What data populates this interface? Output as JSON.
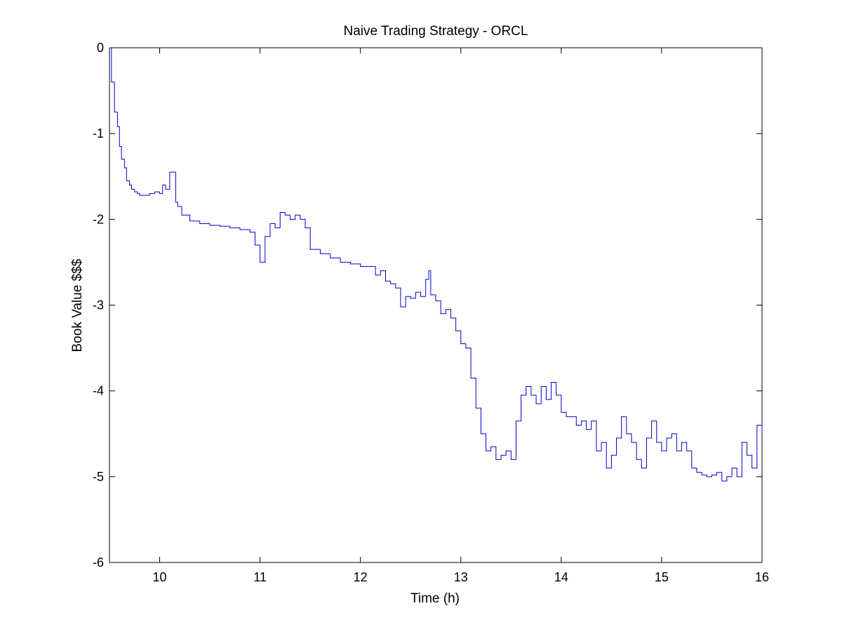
{
  "chart_data": {
    "type": "line",
    "title": "Naive Trading Strategy - ORCL",
    "xlabel": "Time (h)",
    "ylabel": "Book Value $$$",
    "xlim": [
      9.5,
      16
    ],
    "ylim": [
      -6,
      0
    ],
    "xticks": [
      10,
      11,
      12,
      13,
      14,
      15,
      16
    ],
    "yticks": [
      0,
      -1,
      -2,
      -3,
      -4,
      -5,
      -6
    ],
    "grid": false,
    "line_color": "#0000cc",
    "series": [
      {
        "x": [
          9.5,
          9.52,
          9.55,
          9.58,
          9.6,
          9.62,
          9.65,
          9.67,
          9.7,
          9.72,
          9.75,
          9.78,
          9.8,
          9.85,
          9.9,
          9.95,
          10.0,
          10.03,
          10.06,
          10.1,
          10.12,
          10.15,
          10.16,
          10.18,
          10.22,
          10.3,
          10.4,
          10.5,
          10.6,
          10.7,
          10.8,
          10.9,
          10.95,
          11.0,
          11.05,
          11.1,
          11.15,
          11.2,
          11.25,
          11.3,
          11.35,
          11.4,
          11.45,
          11.5,
          11.6,
          11.7,
          11.8,
          11.9,
          12.0,
          12.1,
          12.15,
          12.2,
          12.25,
          12.3,
          12.35,
          12.4,
          12.45,
          12.5,
          12.55,
          12.6,
          12.65,
          12.68,
          12.7,
          12.75,
          12.8,
          12.85,
          12.9,
          12.95,
          13.0,
          13.05,
          13.1,
          13.15,
          13.2,
          13.25,
          13.3,
          13.35,
          13.4,
          13.45,
          13.5,
          13.55,
          13.6,
          13.65,
          13.7,
          13.75,
          13.8,
          13.85,
          13.9,
          13.95,
          14.0,
          14.05,
          14.1,
          14.15,
          14.2,
          14.25,
          14.3,
          14.35,
          14.4,
          14.45,
          14.5,
          14.55,
          14.6,
          14.65,
          14.7,
          14.75,
          14.8,
          14.85,
          14.9,
          14.95,
          15.0,
          15.05,
          15.1,
          15.15,
          15.2,
          15.25,
          15.3,
          15.35,
          15.4,
          15.45,
          15.5,
          15.55,
          15.6,
          15.65,
          15.7,
          15.75,
          15.8,
          15.85,
          15.9,
          15.95,
          16.0
        ],
        "y": [
          0.0,
          -0.4,
          -0.75,
          -0.92,
          -1.15,
          -1.3,
          -1.4,
          -1.55,
          -1.6,
          -1.65,
          -1.68,
          -1.7,
          -1.72,
          -1.72,
          -1.7,
          -1.68,
          -1.7,
          -1.6,
          -1.65,
          -1.45,
          -1.45,
          -1.45,
          -1.8,
          -1.85,
          -1.95,
          -2.02,
          -2.05,
          -2.07,
          -2.08,
          -2.1,
          -2.12,
          -2.15,
          -2.3,
          -2.5,
          -2.2,
          -2.05,
          -2.1,
          -1.92,
          -1.95,
          -2.0,
          -1.95,
          -2.0,
          -2.1,
          -2.35,
          -2.4,
          -2.45,
          -2.5,
          -2.52,
          -2.55,
          -2.55,
          -2.65,
          -2.6,
          -2.72,
          -2.75,
          -2.8,
          -3.02,
          -2.9,
          -2.92,
          -2.85,
          -2.9,
          -2.7,
          -2.6,
          -2.88,
          -2.95,
          -3.1,
          -3.05,
          -3.15,
          -3.3,
          -3.45,
          -3.5,
          -3.85,
          -4.2,
          -4.5,
          -4.7,
          -4.65,
          -4.8,
          -4.75,
          -4.7,
          -4.8,
          -4.35,
          -4.05,
          -3.95,
          -4.05,
          -4.15,
          -3.95,
          -4.1,
          -3.9,
          -4.05,
          -4.25,
          -4.3,
          -4.3,
          -4.4,
          -4.35,
          -4.45,
          -4.35,
          -4.7,
          -4.6,
          -4.9,
          -4.75,
          -4.55,
          -4.3,
          -4.5,
          -4.6,
          -4.8,
          -4.9,
          -4.55,
          -4.35,
          -4.6,
          -4.7,
          -4.55,
          -4.5,
          -4.7,
          -4.6,
          -4.7,
          -4.9,
          -4.95,
          -4.98,
          -5.0,
          -4.98,
          -4.95,
          -5.05,
          -5.0,
          -4.9,
          -5.0,
          -4.6,
          -4.75,
          -4.9,
          -4.4,
          -4.5
        ]
      }
    ]
  }
}
